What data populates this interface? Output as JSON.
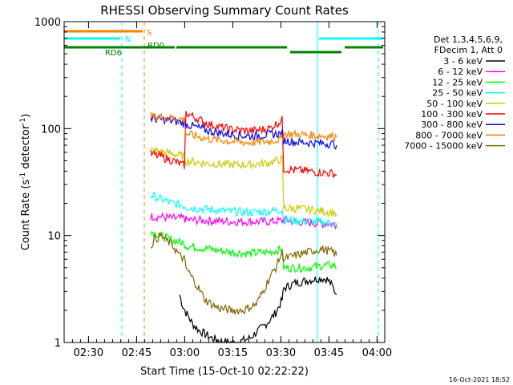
{
  "chart_data": {
    "type": "line",
    "title": "RHESSI Observing Summary Count Rates",
    "xlabel": "Start Time (15-Oct-10 02:22:22)",
    "ylabel": "Count Rate (s",
    "ylabel_sup1": "-1",
    "ylabel_mid": " detector",
    "ylabel_sup2": "-1",
    "ylabel_end": ")",
    "yscale": "log",
    "ylim": [
      1,
      1000
    ],
    "xlim_minutes": [
      0,
      100
    ],
    "x_ticks": [
      {
        "label": "02:30",
        "min": 7.6
      },
      {
        "label": "02:45",
        "min": 22.6
      },
      {
        "label": "03:00",
        "min": 37.6
      },
      {
        "label": "03:15",
        "min": 52.6
      },
      {
        "label": "03:30",
        "min": 67.6
      },
      {
        "label": "03:45",
        "min": 82.6
      },
      {
        "label": "04:00",
        "min": 97.6
      }
    ],
    "y_ticks": [
      {
        "label": "1",
        "value": 1
      },
      {
        "label": "10",
        "value": 10
      },
      {
        "label": "100",
        "value": 100
      },
      {
        "label": "1000",
        "value": 1000
      }
    ],
    "legend": {
      "header": [
        "Det 1,3,4,5,6,9,",
        "FDecim 1, Att 0"
      ],
      "placement": "right"
    },
    "series": [
      {
        "name": "3 - 6 keV",
        "color": "#000000",
        "x": [
          36,
          37,
          38,
          39,
          40,
          42,
          44,
          46,
          48,
          50,
          52,
          54,
          56,
          58,
          60,
          62,
          64,
          66,
          68,
          68.5,
          72,
          76,
          80,
          82,
          83,
          84,
          85
        ],
        "y": [
          2.8,
          2.2,
          1.9,
          1.7,
          1.5,
          1.3,
          1.2,
          1.1,
          1.05,
          1.0,
          1.0,
          1.0,
          1.05,
          1.1,
          1.25,
          1.4,
          1.6,
          1.9,
          2.5,
          3.2,
          3.6,
          3.8,
          4.0,
          3.9,
          3.6,
          3.2,
          2.8
        ]
      },
      {
        "name": "6 - 12 keV",
        "color": "#ff00ff",
        "x": [
          27,
          30,
          34,
          37.5,
          38,
          45,
          52,
          58,
          64,
          68,
          68.5,
          72,
          76,
          80,
          84,
          85
        ],
        "y": [
          15,
          15,
          14.5,
          14.5,
          14,
          13.8,
          13.5,
          13.5,
          13.5,
          13.8,
          14,
          13.5,
          13.2,
          13.0,
          12.8,
          12.5
        ]
      },
      {
        "name": "12 - 25 keV",
        "color": "#00ff00",
        "x": [
          27,
          30,
          34,
          37.5,
          38,
          45,
          52,
          58,
          64,
          68,
          68.5,
          72,
          76,
          80,
          84,
          85
        ],
        "y": [
          11,
          10,
          9,
          8.5,
          8,
          7.5,
          7,
          6.8,
          7,
          7.5,
          5,
          5,
          5,
          5.2,
          5.3,
          5
        ]
      },
      {
        "name": "25 - 50 keV",
        "color": "#00ffff",
        "x": [
          27,
          30,
          34,
          37.5,
          38,
          45,
          52,
          58,
          64,
          68,
          68.5,
          72,
          76,
          80,
          84,
          85
        ],
        "y": [
          24,
          22,
          20,
          19,
          18.5,
          17.5,
          16.8,
          16.5,
          16.8,
          17.5,
          14,
          13.8,
          13.5,
          13.3,
          13.0,
          12.5
        ]
      },
      {
        "name": "50 - 100 keV",
        "color": "#cccc00",
        "x": [
          27,
          30,
          34,
          37.5,
          38,
          45,
          52,
          58,
          64,
          68,
          68.5,
          72,
          76,
          80,
          84,
          85
        ],
        "y": [
          63,
          61,
          58,
          55,
          50,
          47,
          46,
          46,
          48,
          52,
          18,
          18,
          17.5,
          17,
          16.5,
          16
        ]
      },
      {
        "name": "100 - 300 keV",
        "color": "#ff0000",
        "x": [
          27,
          30,
          34,
          37.5,
          38,
          45,
          52,
          58,
          64,
          68,
          68.5,
          72,
          76,
          80,
          84,
          85
        ],
        "y": [
          58,
          55,
          50,
          45,
          140,
          110,
          98,
          95,
          100,
          120,
          42,
          41,
          40,
          39,
          38,
          37
        ]
      },
      {
        "name": "300 - 800 keV",
        "color": "#0000ff",
        "x": [
          27,
          30,
          34,
          37.5,
          38,
          45,
          52,
          58,
          64,
          68,
          68.5,
          72,
          76,
          80,
          84,
          85
        ],
        "y": [
          125,
          122,
          118,
          112,
          110,
          95,
          88,
          85,
          88,
          90,
          78,
          75,
          74,
          73,
          72,
          70
        ]
      },
      {
        "name": "800 - 7000 keV",
        "color": "#ff8000",
        "x": [
          27,
          30,
          34,
          37.5,
          38,
          45,
          52,
          58,
          64,
          68,
          68.5,
          72,
          76,
          80,
          84,
          85
        ],
        "y": [
          130,
          128,
          125,
          122,
          90,
          80,
          76,
          74,
          76,
          80,
          90,
          88,
          87,
          86,
          85,
          83
        ]
      },
      {
        "name": "7000 - 15000 keV",
        "color": "#806600",
        "x": [
          27,
          28,
          30,
          32,
          34,
          36,
          37.5,
          38,
          40,
          42,
          44,
          48,
          52,
          56,
          60,
          62,
          64,
          66,
          68,
          68.5,
          72,
          76,
          80,
          84,
          85
        ],
        "y": [
          8,
          9,
          10,
          9,
          8,
          6.5,
          6,
          5,
          4,
          3.2,
          2.5,
          2.1,
          2.0,
          2.0,
          2.3,
          3.0,
          4.0,
          5.0,
          7.0,
          6,
          6.5,
          7,
          7.5,
          7,
          6.5
        ]
      }
    ],
    "state_bars": [
      {
        "name": "S",
        "color": "#ff8000",
        "segments": [
          [
            0,
            25
          ]
        ]
      },
      {
        "name": "N",
        "color": "#00ffff",
        "segments": [
          [
            0,
            18
          ],
          [
            79,
            100
          ]
        ]
      },
      {
        "name": "RD6",
        "color": "#008000",
        "segments": [
          [
            0,
            35
          ]
        ]
      },
      {
        "name": "RD0",
        "color": "#008000",
        "segments": [
          [
            35,
            70
          ],
          [
            70,
            87
          ],
          [
            87,
            100
          ]
        ]
      }
    ],
    "vlines": [
      {
        "x": 0,
        "color": "#00ffff",
        "style": "solid"
      },
      {
        "x": 18,
        "color": "#00ffff",
        "style": "dashed"
      },
      {
        "x": 25,
        "color": "#ff8000",
        "style": "dashed"
      },
      {
        "x": 79,
        "color": "#00ffff",
        "style": "solid"
      },
      {
        "x": 98,
        "color": "#00ffff",
        "style": "dashed"
      }
    ],
    "grid": false
  },
  "footer": {
    "timestamp": "16-Oct-2021 18:52"
  }
}
